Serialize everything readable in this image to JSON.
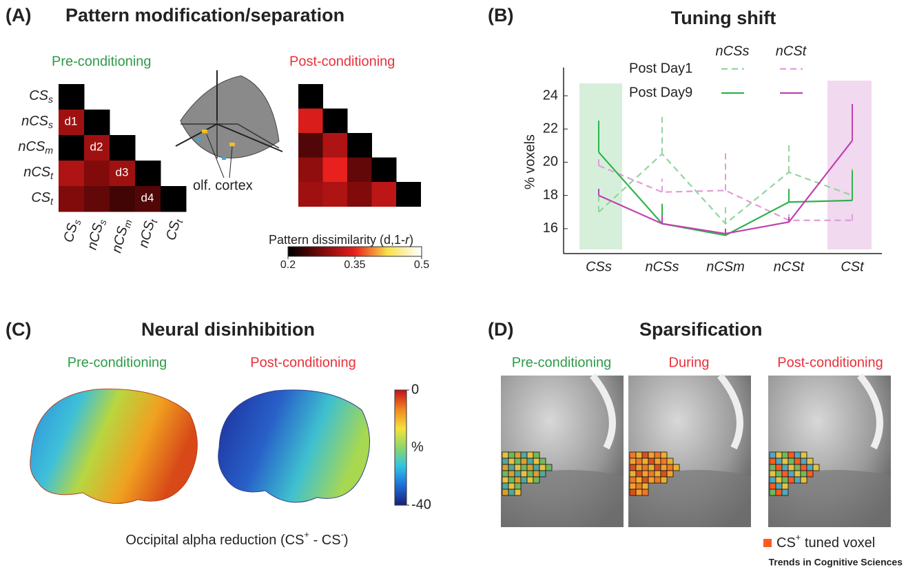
{
  "panels": {
    "a": {
      "label": "(A)",
      "title": "Pattern modification/separation",
      "brain_label": "olf. cortex",
      "distance_labels": [
        "d1",
        "d2",
        "d3",
        "d4"
      ],
      "colorbar": {
        "title_start": "Pattern dissimilarity (d,1-",
        "title_italic": "r",
        "title_end": ")"
      }
    },
    "b": {
      "label": "(B)"
    },
    "c": {
      "label": "(C)",
      "title": "Neural disinhibition",
      "pre_title": "Pre-conditioning",
      "post_title": "Post-conditioning",
      "caption": {
        "start": "Occipital alpha reduction (CS",
        "sup1": "+",
        "middle": " - CS",
        "sup2": "-",
        "end": ")"
      },
      "colorbar": {
        "lim": [
          -40,
          0
        ],
        "ticks": [
          0,
          -40
        ],
        "unit": "%",
        "colormap": [
          "#1a237e",
          "#1e6fd9",
          "#2ec4e6",
          "#8fd66a",
          "#f4e23c",
          "#f08a1e",
          "#c8141e"
        ]
      }
    },
    "d": {
      "label": "(D)",
      "title": "Sparsification",
      "stage_titles": [
        "Pre-conditioning",
        "During",
        "Post-conditioning"
      ],
      "legend": {
        "start": "CS",
        "sup": "+",
        "end": " tuned voxel"
      }
    },
    "footer": "Trends in Cognitive Sciences"
  },
  "chart_data": [
    {
      "type": "heatmap",
      "title": "Pre-conditioning",
      "title_color": "#2e9a48",
      "rows": [
        {
          "base": "CS",
          "sub": "s"
        },
        {
          "base": "nCS",
          "sub": "s"
        },
        {
          "base": "nCS",
          "sub": "m"
        },
        {
          "base": "nCS",
          "sub": "t"
        },
        {
          "base": "CS",
          "sub": "t"
        }
      ],
      "columns": [
        {
          "base": "CS",
          "sub": "s"
        },
        {
          "base": "nCS",
          "sub": "s"
        },
        {
          "base": "nCS",
          "sub": "m"
        },
        {
          "base": "nCS",
          "sub": "t"
        },
        {
          "base": "CS",
          "sub": "t"
        }
      ],
      "values": [
        [
          null,
          null,
          null,
          null,
          null
        ],
        [
          0.3,
          null,
          null,
          null,
          null
        ],
        [
          0.2,
          0.3,
          null,
          null,
          null
        ],
        [
          0.31,
          0.28,
          0.3,
          null,
          null
        ],
        [
          0.28,
          0.26,
          0.24,
          0.25,
          null
        ]
      ],
      "lim": [
        0.2,
        0.5
      ],
      "colormap": [
        "#000000",
        "#7a0a0a",
        "#e8201e",
        "#f7e04a",
        "#ffffff"
      ]
    },
    {
      "type": "heatmap",
      "title": "Post-conditioning",
      "title_color": "#e8303a",
      "values": [
        [
          null,
          null,
          null,
          null,
          null
        ],
        [
          0.34,
          null,
          null,
          null,
          null
        ],
        [
          0.25,
          0.31,
          null,
          null,
          null
        ],
        [
          0.29,
          0.35,
          0.26,
          null,
          null
        ],
        [
          0.3,
          0.31,
          0.28,
          0.32,
          null
        ]
      ],
      "lim": [
        0.2,
        0.5
      ],
      "colormap": [
        "#000000",
        "#7a0a0a",
        "#e8201e",
        "#f7e04a",
        "#ffffff"
      ],
      "colorbar_ticks": [
        0.2,
        0.35,
        0.5
      ]
    },
    {
      "type": "line",
      "title": "Tuning shift",
      "ylabel": "% voxels",
      "categories": [
        "CSs",
        "nCSs",
        "nCSm",
        "nCSt",
        "CSt"
      ],
      "ylim": [
        14.5,
        25.7
      ],
      "yticks": [
        16,
        18,
        20,
        22,
        24
      ],
      "legend": {
        "rows": [
          "Post Day1",
          "Post Day9"
        ],
        "columns": [
          "nCSs",
          "nCSt"
        ]
      },
      "series": [
        {
          "color": "#93d49e",
          "dashed": true,
          "values": [
            17.0,
            20.5,
            16.3,
            19.4,
            18.0
          ],
          "errors": [
            1.0,
            2.3,
            1.0,
            1.8,
            1.6
          ]
        },
        {
          "color": "#e29bd6",
          "dashed": true,
          "values": [
            19.8,
            18.2,
            18.3,
            16.5,
            16.5
          ],
          "errors": [
            0.6,
            0.8,
            2.3,
            0.6,
            0.5
          ]
        },
        {
          "color": "#2db34a",
          "dashed": false,
          "values": [
            20.6,
            16.3,
            15.6,
            17.6,
            17.7
          ],
          "errors": [
            1.9,
            1.2,
            0.4,
            0.8,
            1.8
          ]
        },
        {
          "color": "#c040b0",
          "dashed": false,
          "values": [
            18.0,
            16.3,
            15.7,
            16.4,
            21.3
          ],
          "errors": [
            0.4,
            0.5,
            0.3,
            0.3,
            2.2
          ]
        }
      ]
    }
  ]
}
